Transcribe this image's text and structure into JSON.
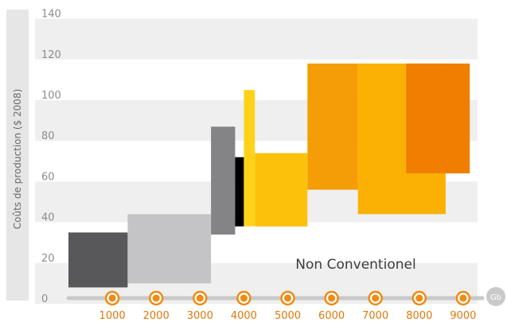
{
  "chart_data": {
    "type": "bar",
    "title": "",
    "xlabel": "",
    "ylabel": "Coûts de production ($ 2008)",
    "x_unit": "Gb",
    "ylim": [
      0,
      140
    ],
    "yticks": [
      0,
      20,
      40,
      60,
      80,
      100,
      120,
      140
    ],
    "xlim": [
      0,
      9000
    ],
    "xticks": [
      1000,
      2000,
      3000,
      4000,
      5000,
      6000,
      7000,
      8000,
      9000
    ],
    "grid": "alternating horizontal bands",
    "annotations": [
      "Non Conventionel"
    ],
    "segments": [
      {
        "x_start": 0,
        "x_end": 1350,
        "y_low": 8,
        "y_high": 35,
        "color": "#58585a"
      },
      {
        "x_start": 1350,
        "x_end": 3250,
        "y_low": 10,
        "y_high": 44,
        "color": "#c4c4c6"
      },
      {
        "x_start": 3250,
        "x_end": 3800,
        "y_low": 34,
        "y_high": 87,
        "color": "#848486"
      },
      {
        "x_start": 3800,
        "x_end": 4000,
        "y_low": 38,
        "y_high": 72,
        "color": "#000000"
      },
      {
        "x_start": 4000,
        "x_end": 4250,
        "y_low": 38,
        "y_high": 105,
        "color": "#ffd21a"
      },
      {
        "x_start": 4250,
        "x_end": 5450,
        "y_low": 38,
        "y_high": 74,
        "color": "#fcc10a"
      },
      {
        "x_start": 5450,
        "x_end": 6600,
        "y_low": 56,
        "y_high": 118,
        "color": "#f59d07"
      },
      {
        "x_start": 6600,
        "x_end": 8600,
        "y_low": 44,
        "y_high": 118,
        "color": "#fab103"
      },
      {
        "x_start": 7700,
        "x_end": 9150,
        "y_low": 64,
        "y_high": 118,
        "color": "#f07e01"
      }
    ]
  }
}
